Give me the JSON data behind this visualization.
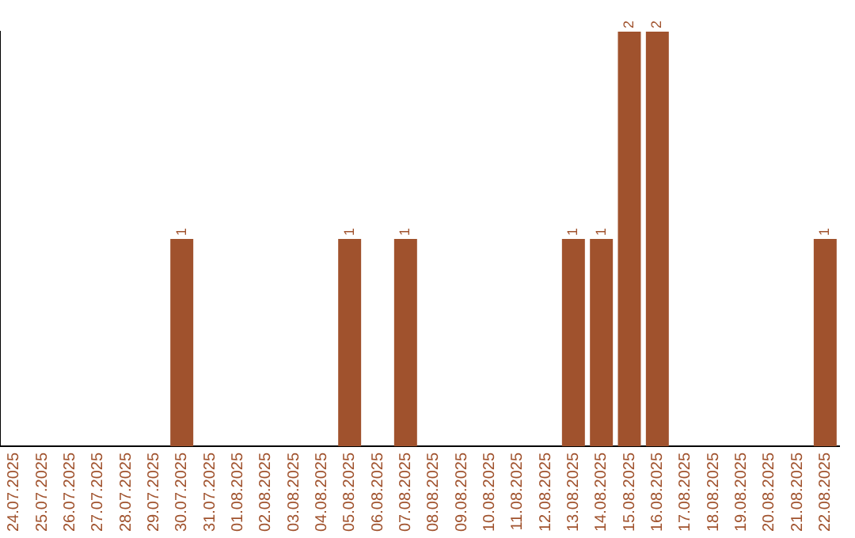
{
  "chart_data": {
    "type": "bar",
    "categories": [
      "24.07.2025",
      "25.07.2025",
      "26.07.2025",
      "27.07.2025",
      "28.07.2025",
      "29.07.2025",
      "30.07.2025",
      "31.07.2025",
      "01.08.2025",
      "02.08.2025",
      "03.08.2025",
      "04.08.2025",
      "05.08.2025",
      "06.08.2025",
      "07.08.2025",
      "08.08.2025",
      "09.08.2025",
      "10.08.2025",
      "11.08.2025",
      "12.08.2025",
      "13.08.2025",
      "14.08.2025",
      "15.08.2025",
      "16.08.2025",
      "17.08.2025",
      "18.08.2025",
      "19.08.2025",
      "20.08.2025",
      "21.08.2025",
      "22.08.2025"
    ],
    "values": [
      0,
      0,
      0,
      0,
      0,
      0,
      1,
      0,
      0,
      0,
      0,
      0,
      1,
      0,
      1,
      0,
      0,
      0,
      0,
      0,
      1,
      1,
      2,
      2,
      0,
      0,
      0,
      0,
      0,
      1
    ],
    "value_labels": [
      null,
      null,
      null,
      null,
      null,
      null,
      "1",
      null,
      null,
      null,
      null,
      null,
      "1",
      null,
      "1",
      null,
      null,
      null,
      null,
      null,
      "1",
      "1",
      "2",
      "2",
      null,
      null,
      null,
      null,
      null,
      "1"
    ],
    "color": "#a0522d",
    "ylim": [
      0,
      2
    ],
    "tick_labels": "x",
    "grid": false,
    "legend": false
  }
}
